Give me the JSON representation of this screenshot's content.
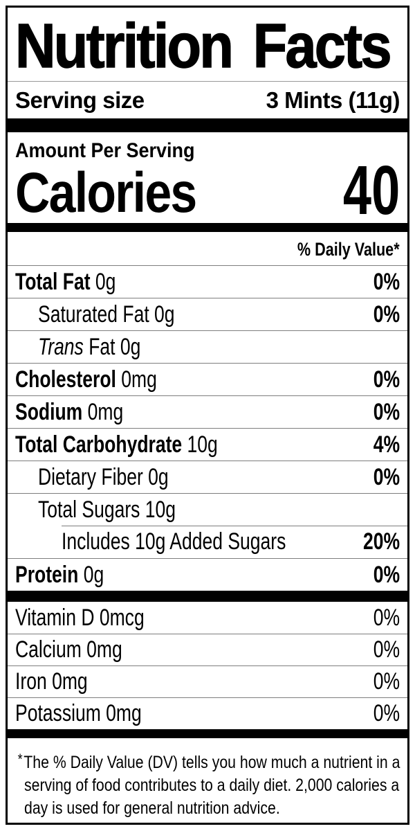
{
  "colors": {
    "text": "#000000",
    "thick_bar": "#000000",
    "hairline": "#7d7d7d"
  },
  "label": {
    "title": "Nutrition Facts",
    "serving": {
      "label": "Serving size",
      "value": "3 Mints (11g)"
    },
    "calories": {
      "header": "Amount Per Serving",
      "label": "Calories",
      "value": "40"
    },
    "daily_value_header": "% Daily Value*",
    "nutrients": [
      {
        "name": "Total Fat",
        "amount": "0g",
        "dv": "0%",
        "bold_name": true,
        "italic_name": false,
        "indent": 0,
        "partial_rule": false
      },
      {
        "name": "Saturated Fat",
        "amount": "0g",
        "dv": "0%",
        "bold_name": false,
        "italic_name": false,
        "indent": 1,
        "partial_rule": false
      },
      {
        "name": "Trans",
        "amount": "Fat 0g",
        "dv": "",
        "bold_name": false,
        "italic_name": true,
        "indent": 1,
        "partial_rule": false
      },
      {
        "name": "Cholesterol",
        "amount": "0mg",
        "dv": "0%",
        "bold_name": true,
        "italic_name": false,
        "indent": 0,
        "partial_rule": false
      },
      {
        "name": "Sodium",
        "amount": "0mg",
        "dv": "0%",
        "bold_name": true,
        "italic_name": false,
        "indent": 0,
        "partial_rule": false
      },
      {
        "name": "Total Carbohydrate",
        "amount": "10g",
        "dv": "4%",
        "bold_name": true,
        "italic_name": false,
        "indent": 0,
        "partial_rule": false
      },
      {
        "name": "Dietary Fiber",
        "amount": "0g",
        "dv": "0%",
        "bold_name": false,
        "italic_name": false,
        "indent": 1,
        "partial_rule": false
      },
      {
        "name": "Total Sugars",
        "amount": "10g",
        "dv": "",
        "bold_name": false,
        "italic_name": false,
        "indent": 1,
        "partial_rule": false
      },
      {
        "name": "Includes 10g Added Sugars",
        "amount": "",
        "dv": "20%",
        "bold_name": false,
        "italic_name": false,
        "indent": 2,
        "partial_rule": true
      },
      {
        "name": "Protein",
        "amount": "0g",
        "dv": "0%",
        "bold_name": true,
        "italic_name": false,
        "indent": 0,
        "partial_rule": false
      }
    ],
    "vitamins": [
      {
        "name": "Vitamin D",
        "amount": "0mcg",
        "dv": "0%"
      },
      {
        "name": "Calcium",
        "amount": "0mg",
        "dv": "0%"
      },
      {
        "name": "Iron",
        "amount": "0mg",
        "dv": "0%"
      },
      {
        "name": "Potassium",
        "amount": "0mg",
        "dv": "0%"
      }
    ],
    "footnote": {
      "marker": "*",
      "lines": [
        "The % Daily Value (DV) tells you how much a nutrient in a",
        "serving of food contributes to a daily diet. 2,000 calories a",
        "day is used for general nutrition advice."
      ]
    }
  }
}
